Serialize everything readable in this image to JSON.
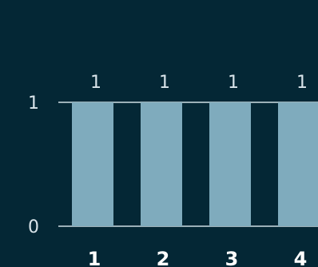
{
  "chart_data": {
    "type": "bar",
    "categories": [
      "1",
      "2",
      "3",
      "4"
    ],
    "values": [
      1,
      1,
      1,
      1
    ],
    "data_labels": [
      "1",
      "1",
      "1",
      "1"
    ],
    "title": "",
    "xlabel": "",
    "ylabel": "",
    "ylim": [
      0,
      1
    ],
    "yticks": [
      0,
      1
    ],
    "ytick_labels": [
      "0",
      "1"
    ],
    "grid": false,
    "legend": "none"
  },
  "colors": {
    "background": "#042735",
    "bar": "#7fabbd",
    "axis": "#cfdde4",
    "tick_text": "#d9e4ea",
    "category_text": "#ffffff"
  }
}
